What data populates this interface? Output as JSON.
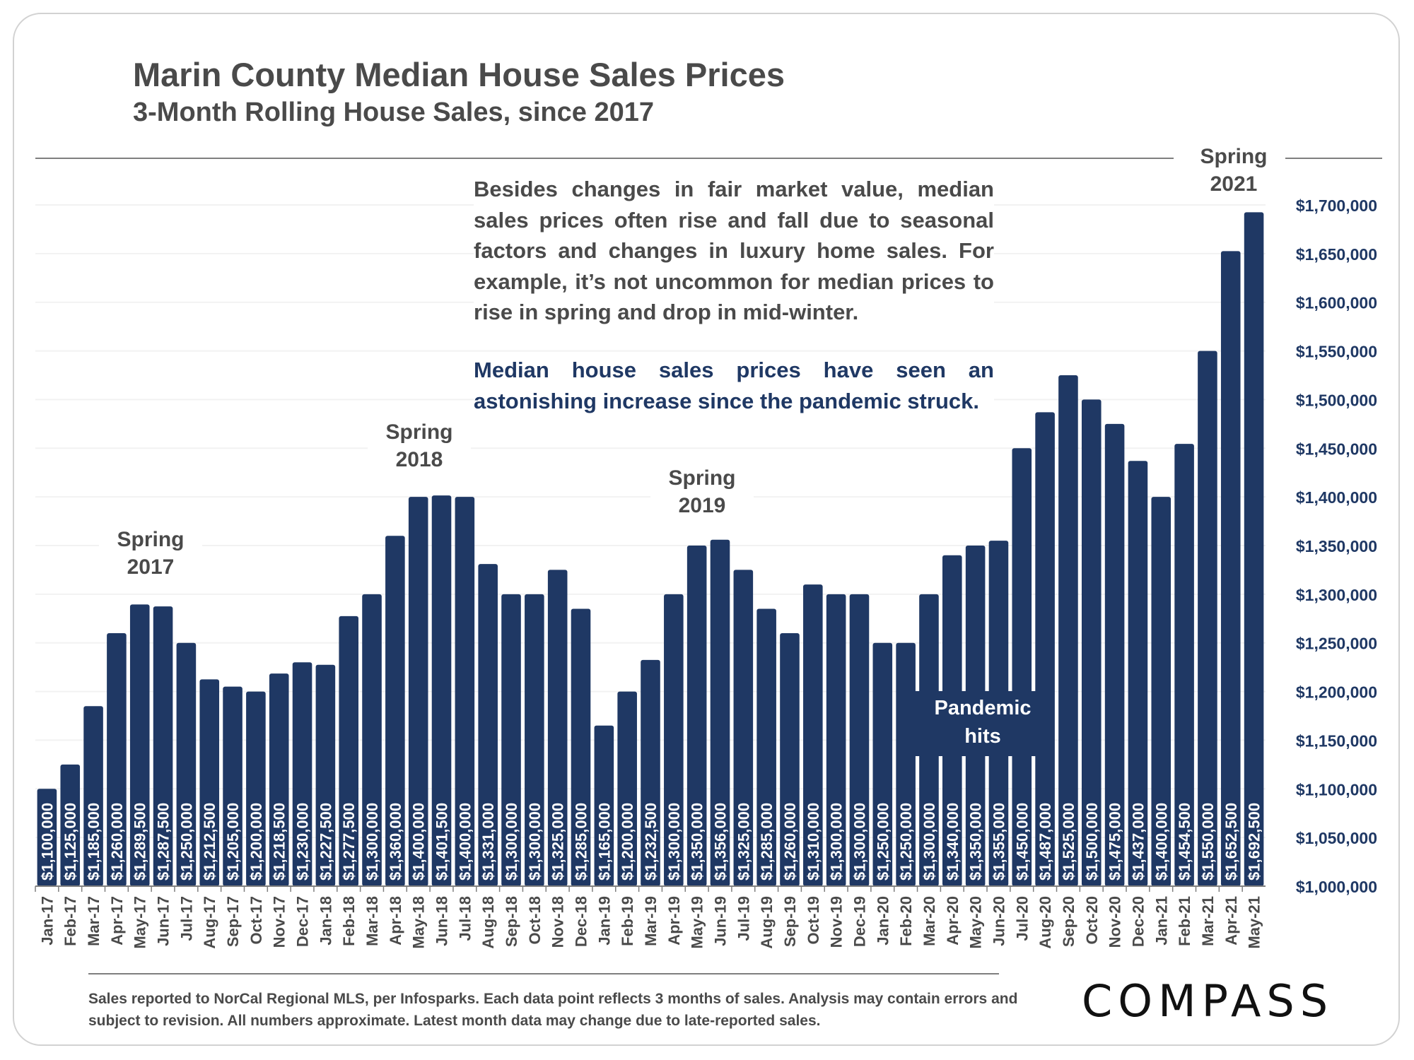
{
  "title": "Marin County Median House Sales Prices",
  "subtitle": "3-Month Rolling House Sales, since 2017",
  "note_paragraph": "Besides changes in fair market value, median sales prices often rise and fall due to seasonal factors and changes in luxury home sales. For example, it’s not uncommon for median prices to rise in spring and drop in mid-winter.",
  "note_highlight": "Median house sales prices have seen an astonishing increase since the pandemic struck.",
  "annotations": {
    "spring_2017": [
      "Spring",
      "2017"
    ],
    "spring_2018": [
      "Spring",
      "2018"
    ],
    "spring_2019": [
      "Spring",
      "2019"
    ],
    "spring_2021": [
      "Spring",
      "2021"
    ],
    "pandemic": [
      "Pandemic",
      "hits"
    ]
  },
  "footnote": "Sales reported to NorCal Regional MLS, per Infosparks. Each data point reflects 3 months of sales. Analysis may contain errors and subject to revision. All numbers approximate. Latest month data may change due to late-reported sales.",
  "logo": "COMPASS",
  "colors": {
    "bar": "#1f3864",
    "text": "#4a4a4a",
    "grid": "#f2f2f2"
  },
  "chart_data": {
    "type": "bar",
    "categories": [
      "Jan-17",
      "Feb-17",
      "Mar-17",
      "Apr-17",
      "May-17",
      "Jun-17",
      "Jul-17",
      "Aug-17",
      "Sep-17",
      "Oct-17",
      "Nov-17",
      "Dec-17",
      "Jan-18",
      "Feb-18",
      "Mar-18",
      "Apr-18",
      "May-18",
      "Jun-18",
      "Jul-18",
      "Aug-18",
      "Sep-18",
      "Oct-18",
      "Nov-18",
      "Dec-18",
      "Jan-19",
      "Feb-19",
      "Mar-19",
      "Apr-19",
      "May-19",
      "Jun-19",
      "Jul-19",
      "Aug-19",
      "Sep-19",
      "Oct-19",
      "Nov-19",
      "Dec-19",
      "Jan-20",
      "Feb-20",
      "Mar-20",
      "Apr-20",
      "May-20",
      "Jun-20",
      "Jul-20",
      "Aug-20",
      "Sep-20",
      "Oct-20",
      "Nov-20",
      "Dec-20",
      "Jan-21",
      "Feb-21",
      "Mar-21",
      "Apr-21",
      "May-21"
    ],
    "values": [
      1100000,
      1125000,
      1185000,
      1260000,
      1289500,
      1287500,
      1250000,
      1212500,
      1205000,
      1200000,
      1218500,
      1230000,
      1227500,
      1277500,
      1300000,
      1360000,
      1400000,
      1401500,
      1400000,
      1331000,
      1300000,
      1300000,
      1325000,
      1285000,
      1165000,
      1200000,
      1232500,
      1300000,
      1350000,
      1356000,
      1325000,
      1285000,
      1260000,
      1310000,
      1300000,
      1300000,
      1250000,
      1250000,
      1300000,
      1340000,
      1350000,
      1355000,
      1450000,
      1487000,
      1525000,
      1500000,
      1475000,
      1437000,
      1400000,
      1454500,
      1550000,
      1652500,
      1692500
    ],
    "value_labels": [
      "$1,100,000",
      "$1,125,000",
      "$1,185,000",
      "$1,260,000",
      "$1,289,500",
      "$1,287,500",
      "$1,250,000",
      "$1,212,500",
      "$1,205,000",
      "$1,200,000",
      "$1,218,500",
      "$1,230,000",
      "$1,227,500",
      "$1,277,500",
      "$1,300,000",
      "$1,360,000",
      "$1,400,000",
      "$1,401,500",
      "$1,400,000",
      "$1,331,000",
      "$1,300,000",
      "$1,300,000",
      "$1,325,000",
      "$1,285,000",
      "$1,165,000",
      "$1,200,000",
      "$1,232,500",
      "$1,300,000",
      "$1,350,000",
      "$1,356,000",
      "$1,325,000",
      "$1,285,000",
      "$1,260,000",
      "$1,310,000",
      "$1,300,000",
      "$1,300,000",
      "$1,250,000",
      "$1,250,000",
      "$1,300,000",
      "$1,340,000",
      "$1,350,000",
      "$1,355,000",
      "$1,450,000",
      "$1,487,000",
      "$1,525,000",
      "$1,500,000",
      "$1,475,000",
      "$1,437,000",
      "$1,400,000",
      "$1,454,500",
      "$1,550,000",
      "$1,652,500",
      "$1,692,500"
    ],
    "ylim": [
      1000000,
      1700000
    ],
    "yticks": [
      1000000,
      1050000,
      1100000,
      1150000,
      1200000,
      1250000,
      1300000,
      1350000,
      1400000,
      1450000,
      1500000,
      1550000,
      1600000,
      1650000,
      1700000
    ],
    "ytick_labels": [
      "$1,000,000",
      "$1,050,000",
      "$1,100,000",
      "$1,150,000",
      "$1,200,000",
      "$1,250,000",
      "$1,300,000",
      "$1,350,000",
      "$1,400,000",
      "$1,450,000",
      "$1,500,000",
      "$1,550,000",
      "$1,600,000",
      "$1,650,000",
      "$1,700,000"
    ],
    "y_axis_position": "right",
    "grid": true
  }
}
